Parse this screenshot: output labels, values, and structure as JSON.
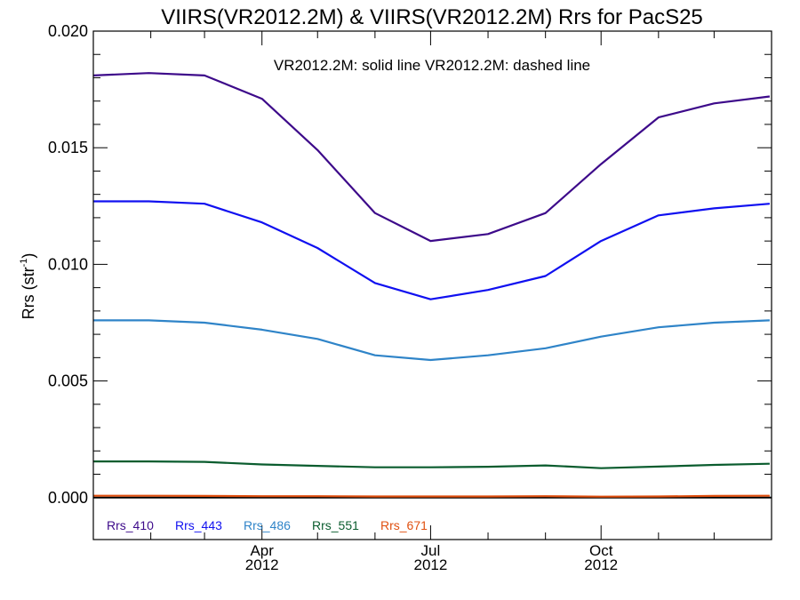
{
  "chart_data": {
    "type": "line",
    "title": "VIIRS(VR2012.2M) & VIIRS(VR2012.2M)  Rrs for PacS25",
    "annotation": "VR2012.2M: solid line   VR2012.2M: dashed line",
    "xlabel": "",
    "ylabel": "Rrs (str",
    "ylabel_superscript": "-1",
    "ylabel_suffix": ")",
    "ylim": [
      -0.0018,
      0.02
    ],
    "yticks": [
      "0.000",
      "0.005",
      "0.010",
      "0.015",
      "0.020"
    ],
    "x_range": [
      "2012-01-01",
      "2012-12-31"
    ],
    "xticks": [
      {
        "date": "2012-04-01",
        "month": "Apr",
        "year": "2012"
      },
      {
        "date": "2012-07-01",
        "month": "Jul",
        "year": "2012"
      },
      {
        "date": "2012-10-01",
        "month": "Oct",
        "year": "2012"
      }
    ],
    "x": [
      "2012-01-01",
      "2012-01-31",
      "2012-03-01",
      "2012-04-01",
      "2012-05-01",
      "2012-06-01",
      "2012-07-01",
      "2012-08-01",
      "2012-09-01",
      "2012-10-01",
      "2012-11-01",
      "2012-12-01",
      "2012-12-31"
    ],
    "series": [
      {
        "name": "Rrs_410",
        "color": "#3d0a8a",
        "values": [
          0.0181,
          0.0182,
          0.0181,
          0.0171,
          0.0149,
          0.0122,
          0.011,
          0.0113,
          0.0122,
          0.0143,
          0.0163,
          0.0169,
          0.0172
        ]
      },
      {
        "name": "Rrs_443",
        "color": "#1010f0",
        "values": [
          0.0127,
          0.0127,
          0.0126,
          0.0118,
          0.0107,
          0.0092,
          0.0085,
          0.0089,
          0.0095,
          0.011,
          0.0121,
          0.0124,
          0.0126
        ]
      },
      {
        "name": "Rrs_486",
        "color": "#2f84c8",
        "values": [
          0.0076,
          0.0076,
          0.0075,
          0.0072,
          0.0068,
          0.0061,
          0.0059,
          0.0061,
          0.0064,
          0.0069,
          0.0073,
          0.0075,
          0.0076
        ]
      },
      {
        "name": "Rrs_551",
        "color": "#0a5c2e",
        "values": [
          0.00155,
          0.00155,
          0.00153,
          0.00142,
          0.00136,
          0.0013,
          0.0013,
          0.00132,
          0.00138,
          0.00126,
          0.00133,
          0.0014,
          0.00145
        ]
      },
      {
        "name": "Rrs_671",
        "color": "#e05010",
        "values": [
          8e-05,
          8e-05,
          7e-05,
          6e-05,
          6e-05,
          5e-05,
          5e-05,
          5e-05,
          6e-05,
          4e-05,
          5e-05,
          7e-05,
          8e-05
        ]
      }
    ],
    "zero_line": true,
    "grid": false,
    "legend_position": "bottom-left"
  }
}
